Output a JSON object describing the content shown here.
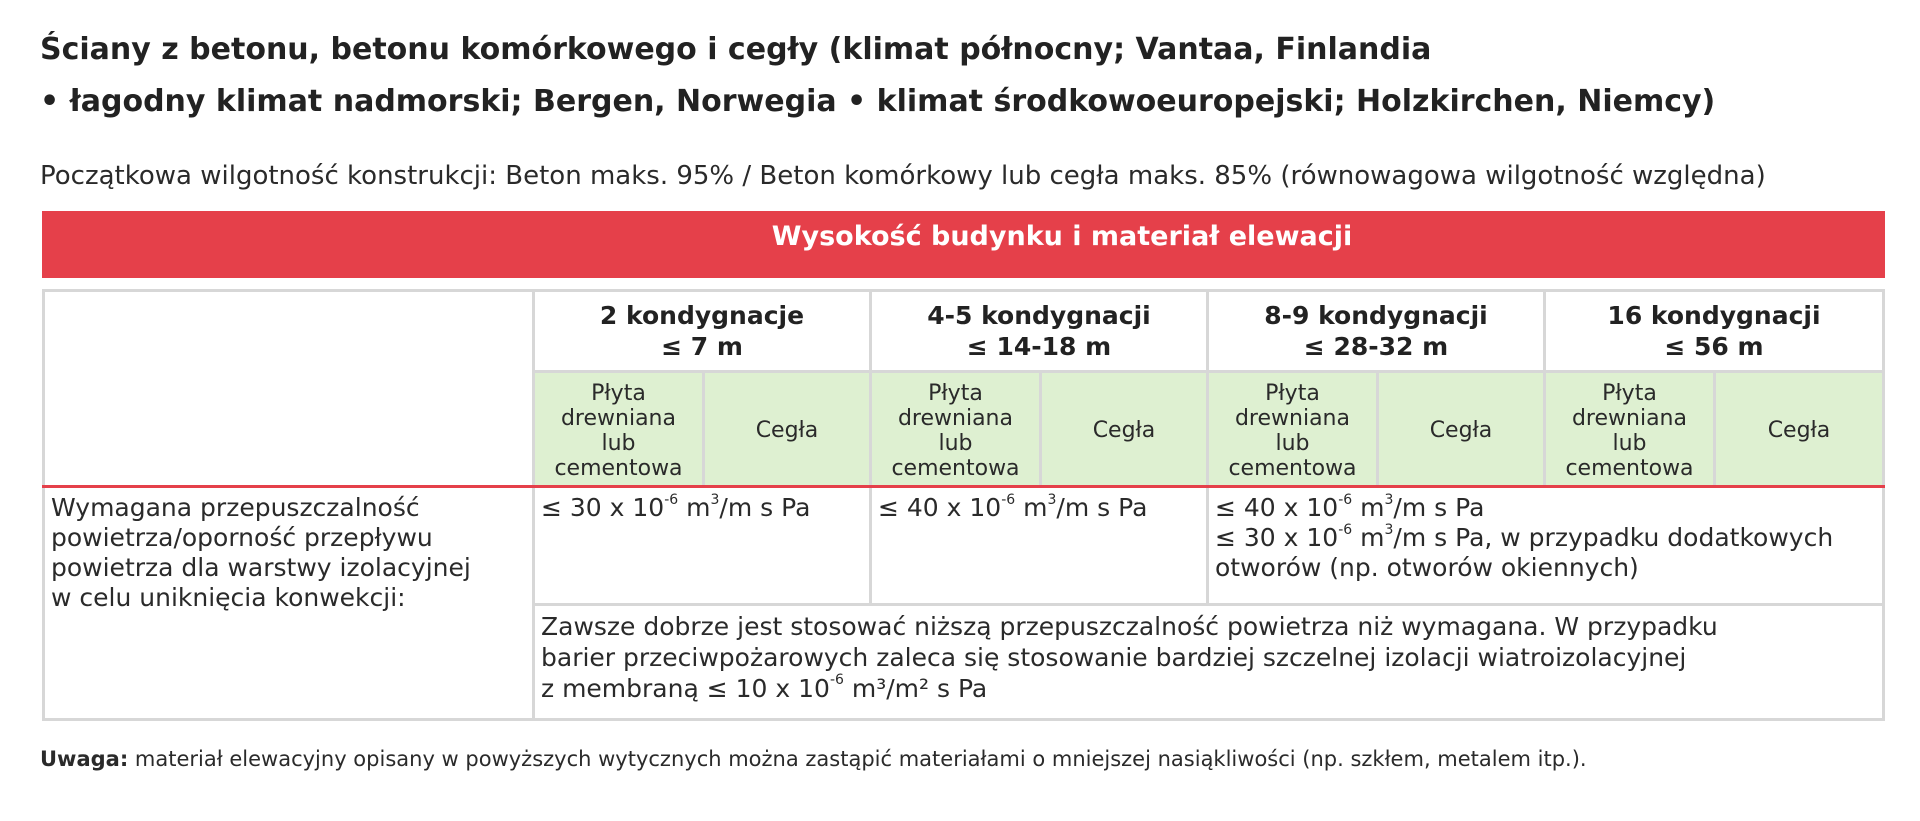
{
  "title": {
    "line1": "Ściany z betonu, betonu komórkowego i cegły (klimat północny; Vantaa, Finlandia",
    "line2": "• łagodny klimat nadmorski; Bergen, Norwegia • klimat środkowoeuropejski; Holzkirchen, Niemcy)"
  },
  "subtitle": "Początkowa wilgotność konstrukcji: Beton maks. 95% / Beton komórkowy lub cegła maks. 85% (równowagowa wilgotność względna)",
  "table": {
    "header": "Wysokość budynku i materiał elewacji",
    "columns": [
      {
        "line1": "2 kondygnacje",
        "line2": "≤ 7 m"
      },
      {
        "line1": "4-5 kondygnacji",
        "line2": "≤ 14-18 m"
      },
      {
        "line1": "8-9 kondygnacji",
        "line2": "≤ 28-32 m"
      },
      {
        "line1": "16 kondygnacji",
        "line2": "≤ 56 m"
      }
    ],
    "sub_columns": {
      "board": [
        "Płyta",
        "drewniana",
        "lub",
        "cementowa"
      ],
      "brick": "Cegła"
    },
    "row_label": [
      "Wymagana przepuszczalność",
      "powietrza/oporność przepływu",
      "powietrza dla warstwy izolacyjnej",
      "w celu uniknięcia konwekcji:"
    ],
    "values": {
      "col1": {
        "prefix": "≤ 30 x 10",
        "exp": "-6",
        "unit_a": " m",
        "unit_exp": "3",
        "unit_b": "/m s Pa"
      },
      "col2": {
        "prefix": "≤ 40 x 10",
        "exp": "-6",
        "unit_a": " m",
        "unit_exp": "3",
        "unit_b": "/m s Pa"
      },
      "col3_line1": {
        "prefix": "≤ 40 x 10",
        "exp": "-6",
        "unit_a": " m",
        "unit_exp": "3",
        "unit_b": "/m s Pa"
      },
      "col3_line2": {
        "prefix": "≤ 30 x 10",
        "exp": "-6",
        "unit_a": " m",
        "unit_exp": "3",
        "unit_b": "/m s Pa, w przypadku dodatkowych"
      },
      "col3_line3": "otworów (np. otworów okiennych)"
    },
    "recommendation": {
      "line1": "Zawsze dobrze jest stosować niższą przepuszczalność powietrza niż wymagana. W przypadku",
      "line2": "barier przeciwpożarowych zaleca się stosowanie bardziej szczelnej izolacji wiatroizolacyjnej",
      "line3_prefix": "z membraną ≤ 10 x 10",
      "line3_exp": "-6",
      "line3_suffix": " m³/m² s Pa"
    }
  },
  "note": {
    "label": "Uwaga:",
    "text": " materiał elewacyjny opisany w powyższych wytycznych można zastąpić materiałami o mniejszej nasiąkliwości (np. szkłem, metalem itp.)."
  },
  "colors": {
    "header_red": "#e5404a",
    "sub_header_green": "#def0d1",
    "border_gray": "#d7d7d7"
  }
}
